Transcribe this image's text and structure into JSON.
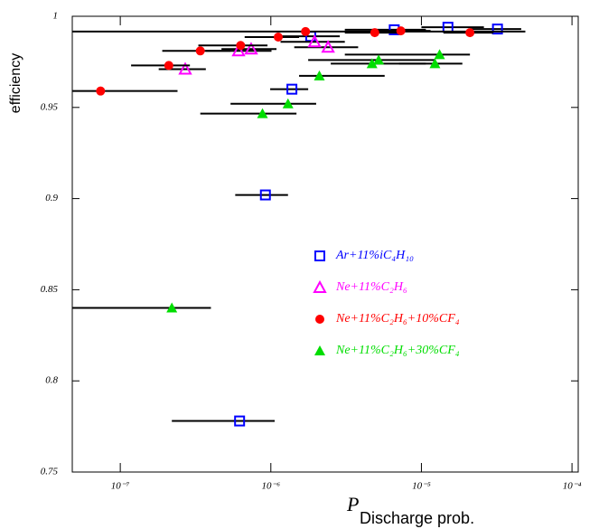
{
  "chart_data": {
    "type": "scatter",
    "y_label": "efficiency",
    "x_label": "P",
    "x_label_sub": "Discharge prob.",
    "x_log": true,
    "xlim": [
      4.8e-08,
      0.00011
    ],
    "ylim": [
      0.75,
      1.0
    ],
    "xticks": [
      {
        "value": 1e-07,
        "label": "10⁻⁷"
      },
      {
        "value": 1e-06,
        "label": "10⁻⁶"
      },
      {
        "value": 1e-05,
        "label": "10⁻⁵"
      },
      {
        "value": 0.0001,
        "label": "10⁻⁴"
      }
    ],
    "yticks": [
      0.75,
      0.8,
      0.85,
      0.9,
      0.95,
      1
    ],
    "series": [
      {
        "name": "Ar+11%iC₄H₁₀",
        "color": "#0000ff",
        "marker": "square-open",
        "x": [
          3.2e-05,
          1.5e-05,
          6.6e-06,
          1.84e-06,
          1.38e-06,
          9.2e-07,
          6.2e-07
        ],
        "values": [
          0.993,
          0.994,
          0.9926,
          0.989,
          0.96,
          0.902,
          0.778
        ],
        "xmin": [
          2.1e-05,
          1e-05,
          3.1e-06,
          1.16e-06,
          9.9e-07,
          5.8e-07,
          2.2e-07
        ],
        "xmax": [
          4.6e-05,
          2.6e-05,
          1.07e-05,
          2.87e-06,
          1.77e-06,
          1.3e-06,
          1.06e-06
        ]
      },
      {
        "name": "Ne+11%C₂H₆",
        "color": "#ff00ff",
        "marker": "triangle-open",
        "x": [
          2.7e-07,
          6.1e-07,
          7.4e-07,
          1.95e-06,
          2.4e-06
        ],
        "values": [
          0.971,
          0.981,
          0.982,
          0.986,
          0.983
        ],
        "xmin": [
          1.8e-07,
          3.7e-07,
          4.7e-07,
          1.16e-06,
          1.43e-06
        ],
        "xmax": [
          3.7e-07,
          1.01e-06,
          1.09e-06,
          3.1e-06,
          3.8e-06
        ]
      },
      {
        "name": "Ne+11%C₂H₆+10%CF₄",
        "color": "#ff0000",
        "marker": "circle",
        "x": [
          7.4e-08,
          2.1e-07,
          3.4e-07,
          6.3e-07,
          1.12e-06,
          1.7e-06,
          4.9e-06,
          7.3e-06,
          2.1e-05
        ],
        "values": [
          0.959,
          0.973,
          0.981,
          0.984,
          0.9886,
          0.9916,
          0.991,
          0.992,
          0.991
        ],
        "xmin": [
          4.8e-08,
          1.18e-07,
          1.9e-07,
          3.3e-07,
          6.7e-07,
          4.8e-08,
          3.1e-06,
          4.7e-06,
          1.4e-05
        ],
        "xmax": [
          2.4e-07,
          2.9e-07,
          5.4e-07,
          9.5e-07,
          1.54e-06,
          4.9e-05,
          7.6e-06,
          1.15e-05,
          3e-05
        ]
      },
      {
        "name": "Ne+11%C₂H₆+30%CF₄",
        "color": "#00dd00",
        "marker": "triangle",
        "x": [
          2.2e-07,
          8.8e-07,
          1.3e-06,
          2.1e-06,
          4.7e-06,
          5.2e-06,
          1.23e-05,
          1.32e-05
        ],
        "values": [
          0.84,
          0.9466,
          0.952,
          0.9673,
          0.974,
          0.976,
          0.974,
          0.979
        ],
        "xmin": [
          4.8e-08,
          3.4e-07,
          5.4e-07,
          1.54e-06,
          2.5e-06,
          1.77e-06,
          7.1e-06,
          3.1e-06
        ],
        "xmax": [
          4e-07,
          1.48e-06,
          2e-06,
          5.7e-06,
          1.07e-05,
          1.23e-05,
          1.87e-05,
          2.1e-05
        ]
      }
    ]
  }
}
